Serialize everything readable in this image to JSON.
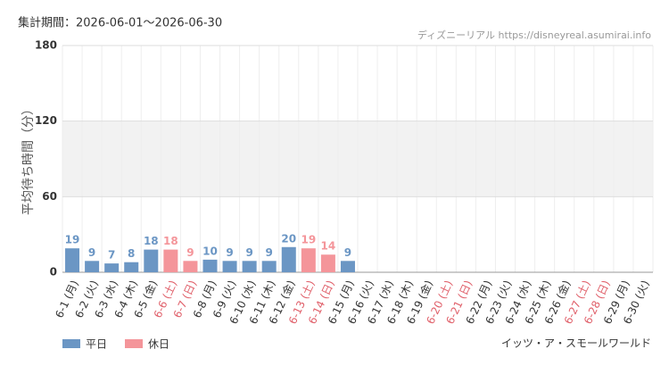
{
  "chart_data": {
    "type": "bar",
    "header": "集計期間：2026-06-01～2026-06-30",
    "source": "ディズニーリアル https://disneyreal.asumirai.info",
    "y_label": "平均待ち時間（分）",
    "attraction": "イッツ・ア・スモールワールド",
    "categories": [
      "6-1 (月)",
      "6-2 (火)",
      "6-3 (水)",
      "6-4 (木)",
      "6-5 (金)",
      "6-6 (土)",
      "6-7 (日)",
      "6-8 (月)",
      "6-9 (火)",
      "6-10 (水)",
      "6-11 (木)",
      "6-12 (金)",
      "6-13 (土)",
      "6-14 (日)",
      "6-15 (月)",
      "6-16 (火)",
      "6-17 (水)",
      "6-18 (木)",
      "6-19 (金)",
      "6-20 (土)",
      "6-21 (日)",
      "6-22 (月)",
      "6-23 (火)",
      "6-24 (水)",
      "6-25 (木)",
      "6-26 (金)",
      "6-27 (土)",
      "6-28 (日)",
      "6-29 (月)",
      "6-30 (火)"
    ],
    "category_colors": [
      "#333",
      "#333",
      "#333",
      "#333",
      "#333",
      "#e0606a",
      "#e0606a",
      "#333",
      "#333",
      "#333",
      "#333",
      "#333",
      "#e0606a",
      "#e0606a",
      "#333",
      "#333",
      "#333",
      "#333",
      "#333",
      "#e0606a",
      "#e0606a",
      "#333",
      "#333",
      "#333",
      "#333",
      "#333",
      "#e0606a",
      "#e0606a",
      "#333",
      "#333"
    ],
    "series": [
      {
        "name": "平日",
        "color": "#6b96c4",
        "values": [
          19,
          9,
          7,
          8,
          18,
          null,
          null,
          10,
          9,
          9,
          9,
          20,
          null,
          null,
          9,
          null,
          null,
          null,
          null,
          null,
          null,
          null,
          null,
          null,
          null,
          null,
          null,
          null,
          null,
          null
        ]
      },
      {
        "name": "休日",
        "color": "#f4959a",
        "values": [
          null,
          null,
          null,
          null,
          null,
          18,
          9,
          null,
          null,
          null,
          null,
          null,
          19,
          14,
          null,
          null,
          null,
          null,
          null,
          null,
          null,
          null,
          null,
          null,
          null,
          null,
          null,
          null,
          null,
          null
        ]
      }
    ],
    "ylim": [
      0,
      180
    ],
    "yticks": [
      0,
      60,
      120,
      180
    ],
    "shaded_range": [
      60,
      120
    ],
    "grid": true
  }
}
